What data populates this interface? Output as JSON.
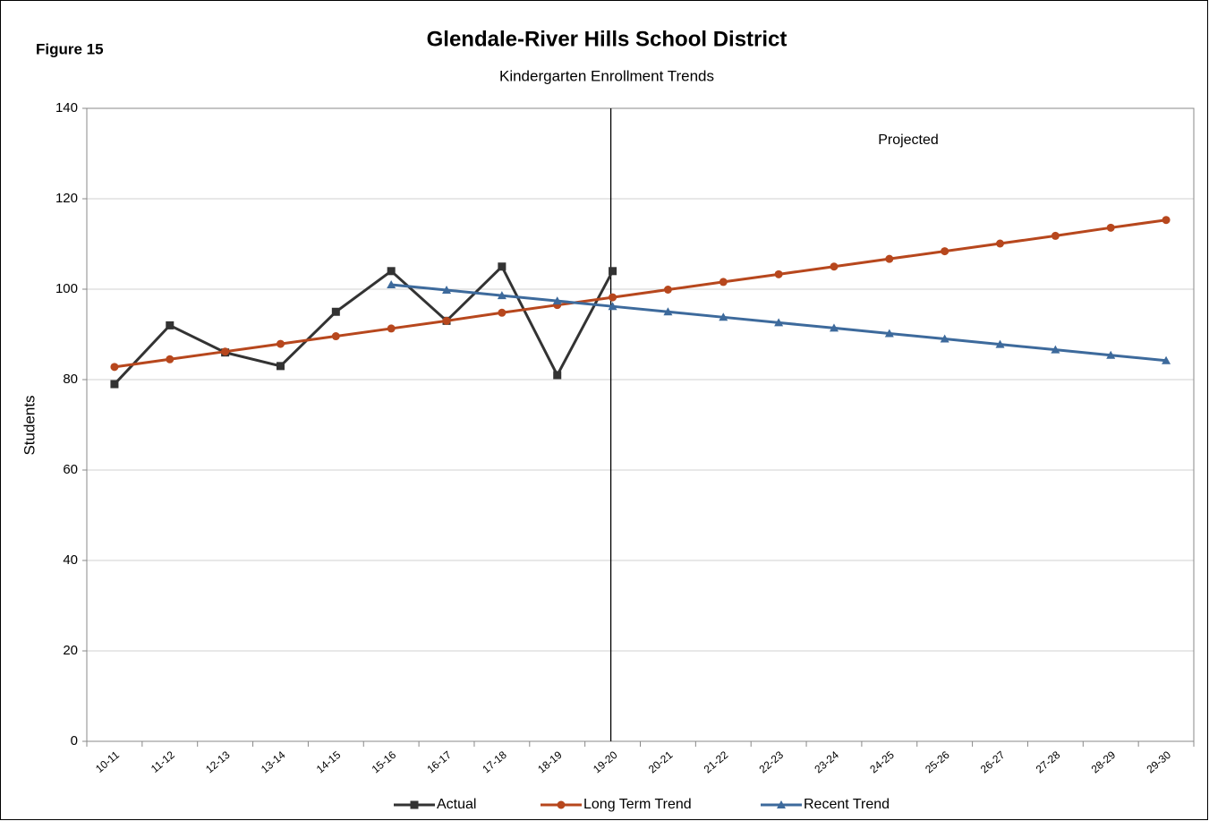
{
  "figure_label": "Figure 15",
  "chart_data": {
    "type": "line",
    "title": "Glendale-River Hills School District",
    "subtitle": "Kindergarten Enrollment Trends",
    "y_label": "Students",
    "annotation": "Projected",
    "categories": [
      "10-11",
      "11-12",
      "12-13",
      "13-14",
      "14-15",
      "15-16",
      "16-17",
      "17-18",
      "18-19",
      "19-20",
      "20-21",
      "21-22",
      "22-23",
      "23-24",
      "24-25",
      "25-26",
      "26-27",
      "27-28",
      "28-29",
      "29-30"
    ],
    "series": [
      {
        "name": "Actual",
        "color": "#333333",
        "marker": "square",
        "values": [
          79,
          92,
          86,
          83,
          95,
          104,
          93,
          105,
          81,
          104,
          null,
          null,
          null,
          null,
          null,
          null,
          null,
          null,
          null,
          null
        ]
      },
      {
        "name": "Long Term Trend",
        "color": "#b7471d",
        "marker": "circle",
        "values": [
          82.8,
          84.5,
          86.2,
          87.9,
          89.6,
          91.3,
          93.0,
          94.8,
          96.5,
          98.2,
          99.9,
          101.6,
          103.3,
          105.0,
          106.7,
          108.4,
          110.1,
          111.8,
          113.6,
          115.3
        ]
      },
      {
        "name": "Recent Trend",
        "color": "#3d6a9c",
        "marker": "triangle",
        "values": [
          null,
          null,
          null,
          null,
          null,
          101.0,
          99.8,
          98.6,
          97.4,
          96.2,
          95.0,
          93.8,
          92.6,
          91.4,
          90.2,
          89.0,
          87.8,
          86.6,
          85.4,
          84.2
        ]
      }
    ],
    "ylim": [
      0,
      140
    ],
    "yticks": [
      0,
      20,
      40,
      60,
      80,
      100,
      120,
      140
    ],
    "grid": true,
    "legend": "bottom"
  }
}
